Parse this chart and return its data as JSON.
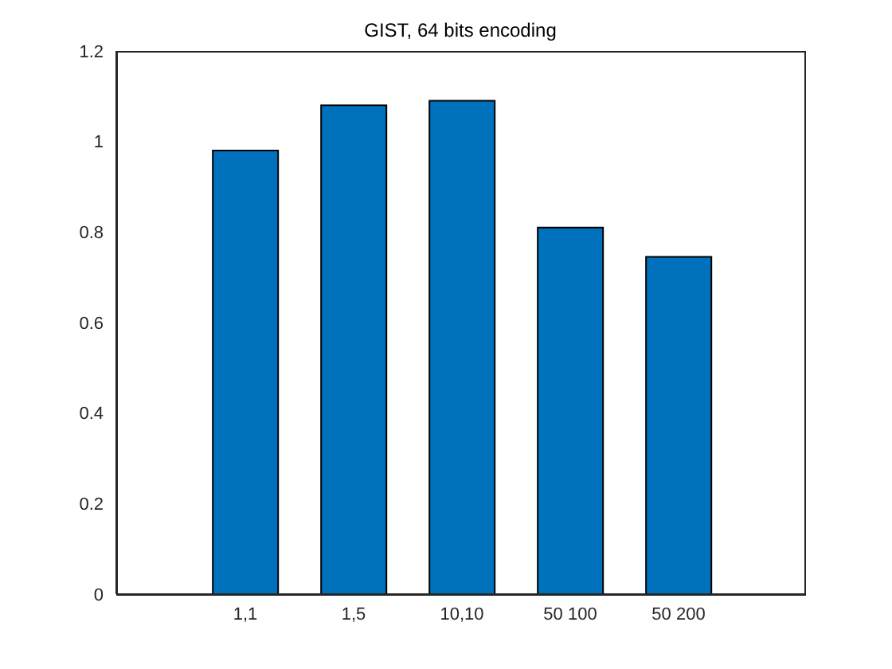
{
  "chart_data": {
    "type": "bar",
    "title": "GIST, 64 bits encoding",
    "categories": [
      "1,1",
      "1,5",
      "10,10",
      "50 100",
      "50 200"
    ],
    "values": [
      0.98,
      1.08,
      1.09,
      0.81,
      0.745
    ],
    "color": "#0072bd",
    "ylim": [
      0,
      1.2
    ],
    "yticks": [
      0,
      0.2,
      0.4,
      0.6,
      0.8,
      1,
      1.2
    ],
    "grid": false
  }
}
